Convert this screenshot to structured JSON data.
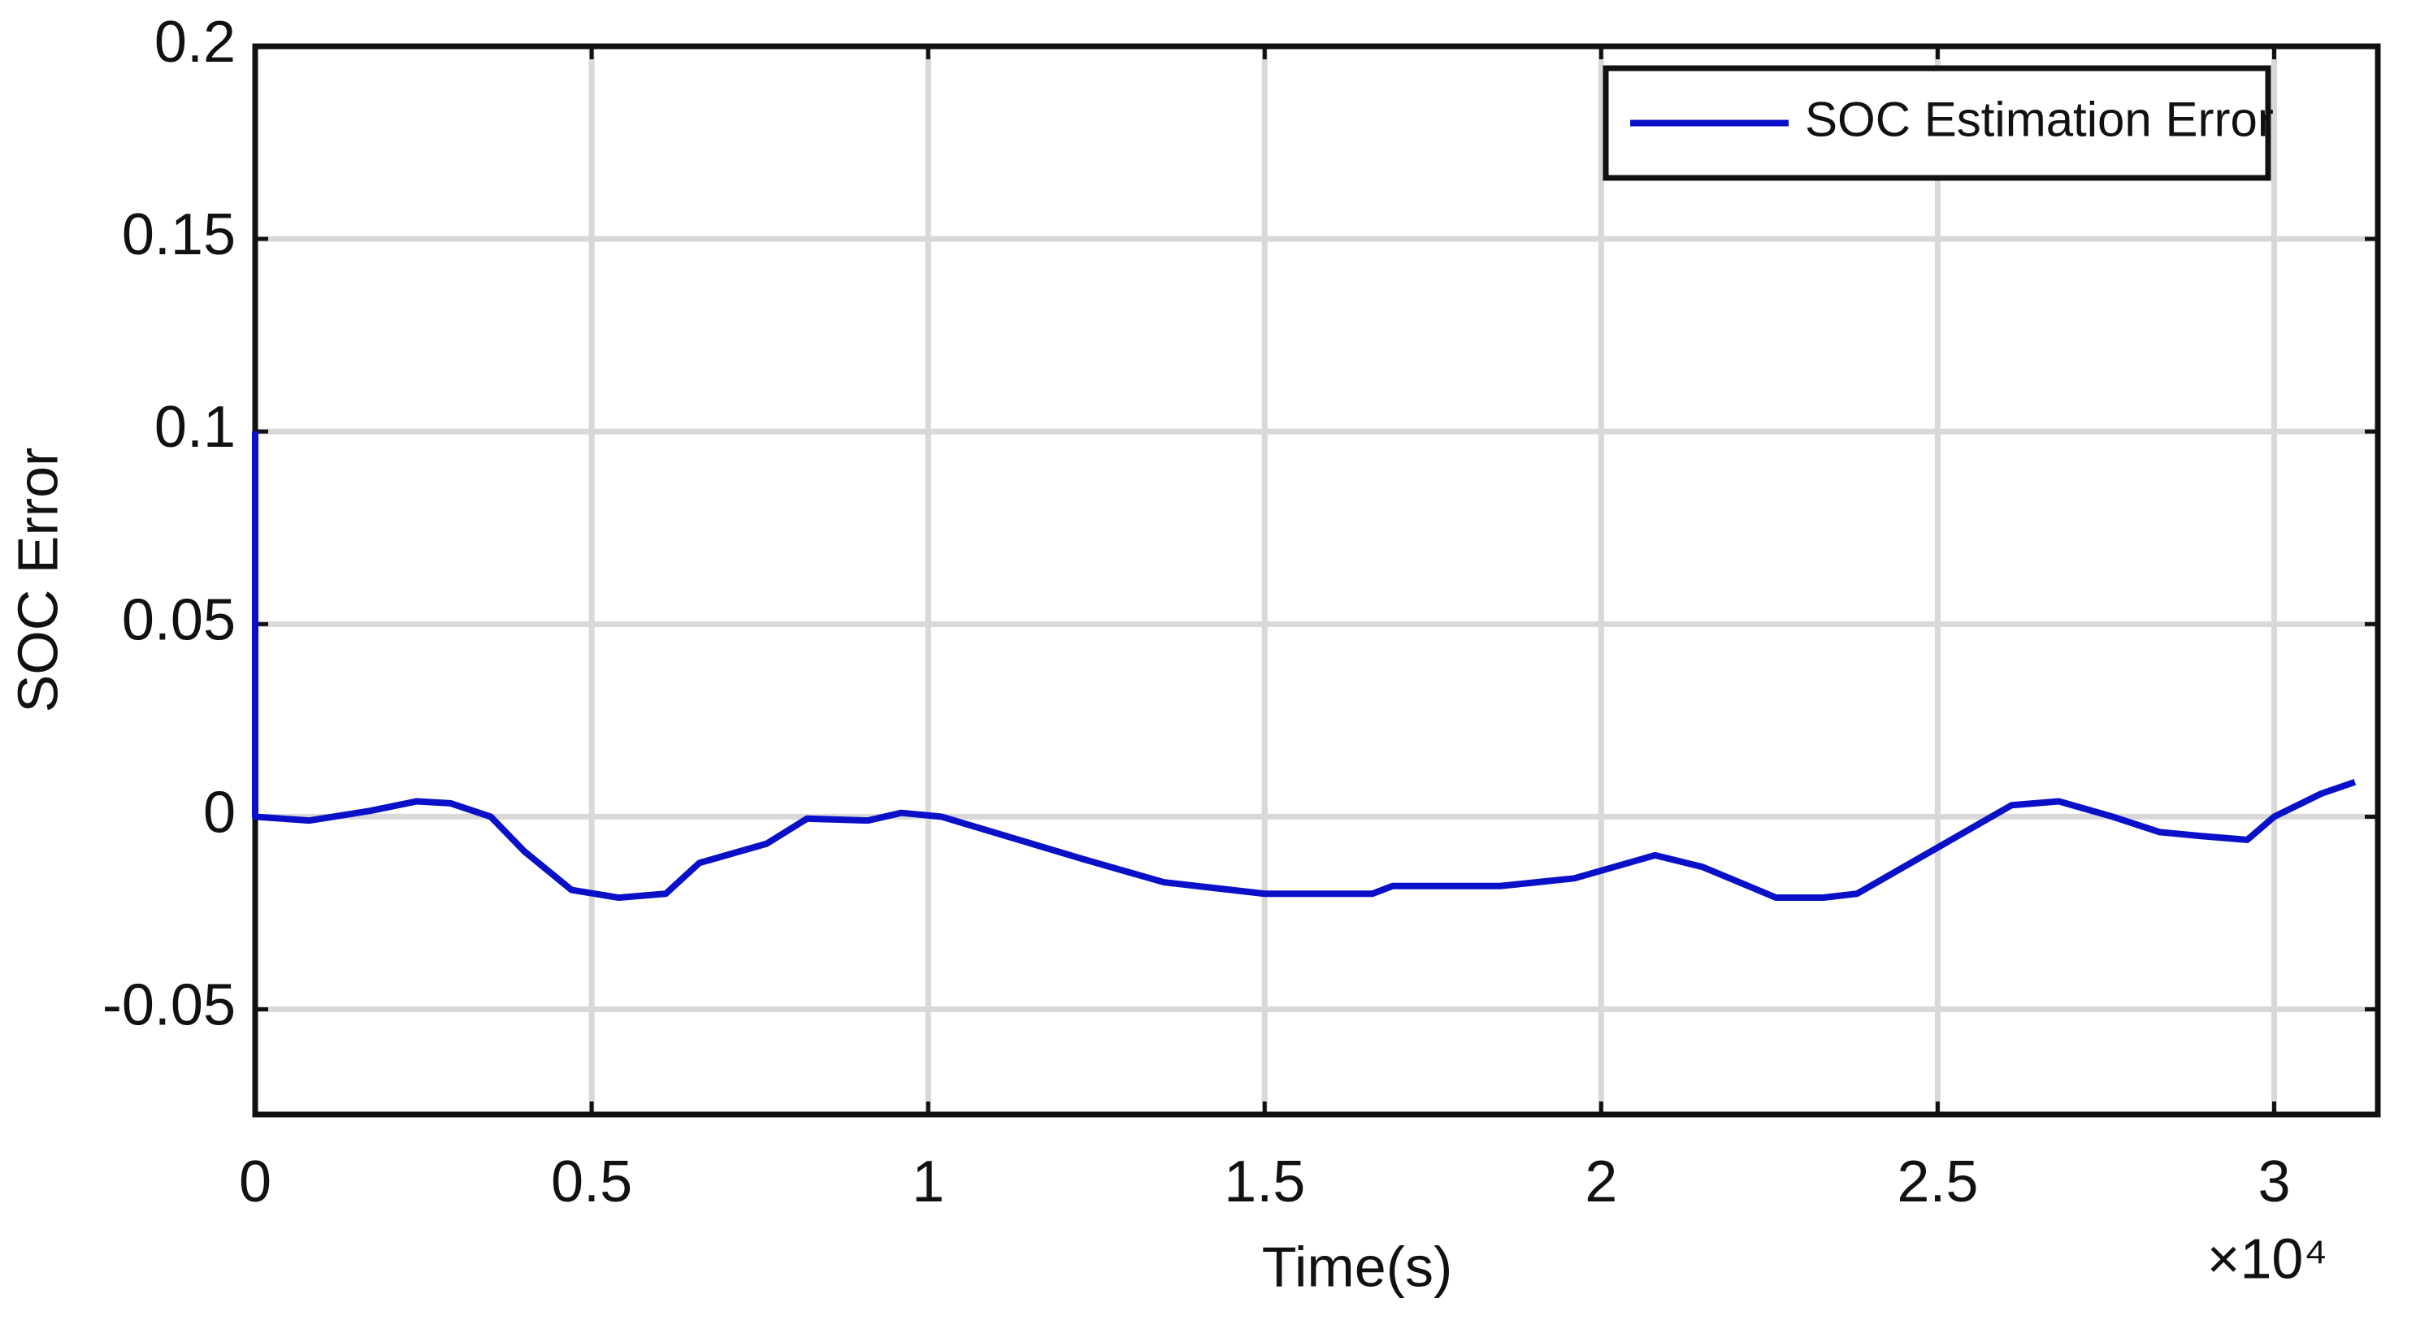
{
  "chart_data": {
    "type": "line",
    "xlabel": "Time(s)",
    "ylabel": "SOC Error",
    "x_scale_label": "×10⁴",
    "x": [
      0,
      0,
      0.08,
      0.17,
      0.24,
      0.29,
      0.35,
      0.4,
      0.47,
      0.54,
      0.61,
      0.66,
      0.76,
      0.82,
      0.91,
      0.96,
      1.02,
      1.23,
      1.35,
      1.5,
      1.66,
      1.69,
      1.85,
      1.96,
      2.08,
      2.15,
      2.26,
      2.33,
      2.38,
      2.5,
      2.61,
      2.68,
      2.76,
      2.83,
      2.89,
      2.96,
      3.0,
      3.07,
      3.12
    ],
    "series": [
      {
        "name": "SOC Estimation Error",
        "color": "#0a10c8",
        "values": [
          0.1,
          0,
          -0.001,
          0.0015,
          0.004,
          0.0035,
          0,
          -0.009,
          -0.019,
          -0.021,
          -0.02,
          -0.012,
          -0.007,
          -0.0005,
          -0.001,
          0.001,
          0,
          -0.011,
          -0.017,
          -0.02,
          -0.02,
          -0.018,
          -0.018,
          -0.016,
          -0.01,
          -0.013,
          -0.021,
          -0.021,
          -0.02,
          -0.008,
          0.003,
          0.004,
          0,
          -0.004,
          -0.005,
          -0.006,
          0,
          0.006,
          0.009
        ]
      }
    ],
    "xlim": [
      0,
      3.154
    ],
    "ylim": [
      -0.0773,
      0.2
    ],
    "xticks": [
      0,
      0.5,
      1,
      1.5,
      2,
      2.5,
      3
    ],
    "yticks": [
      -0.05,
      0,
      0.05,
      0.1,
      0.15,
      0.2
    ],
    "grid": true,
    "legend": "upper right"
  }
}
